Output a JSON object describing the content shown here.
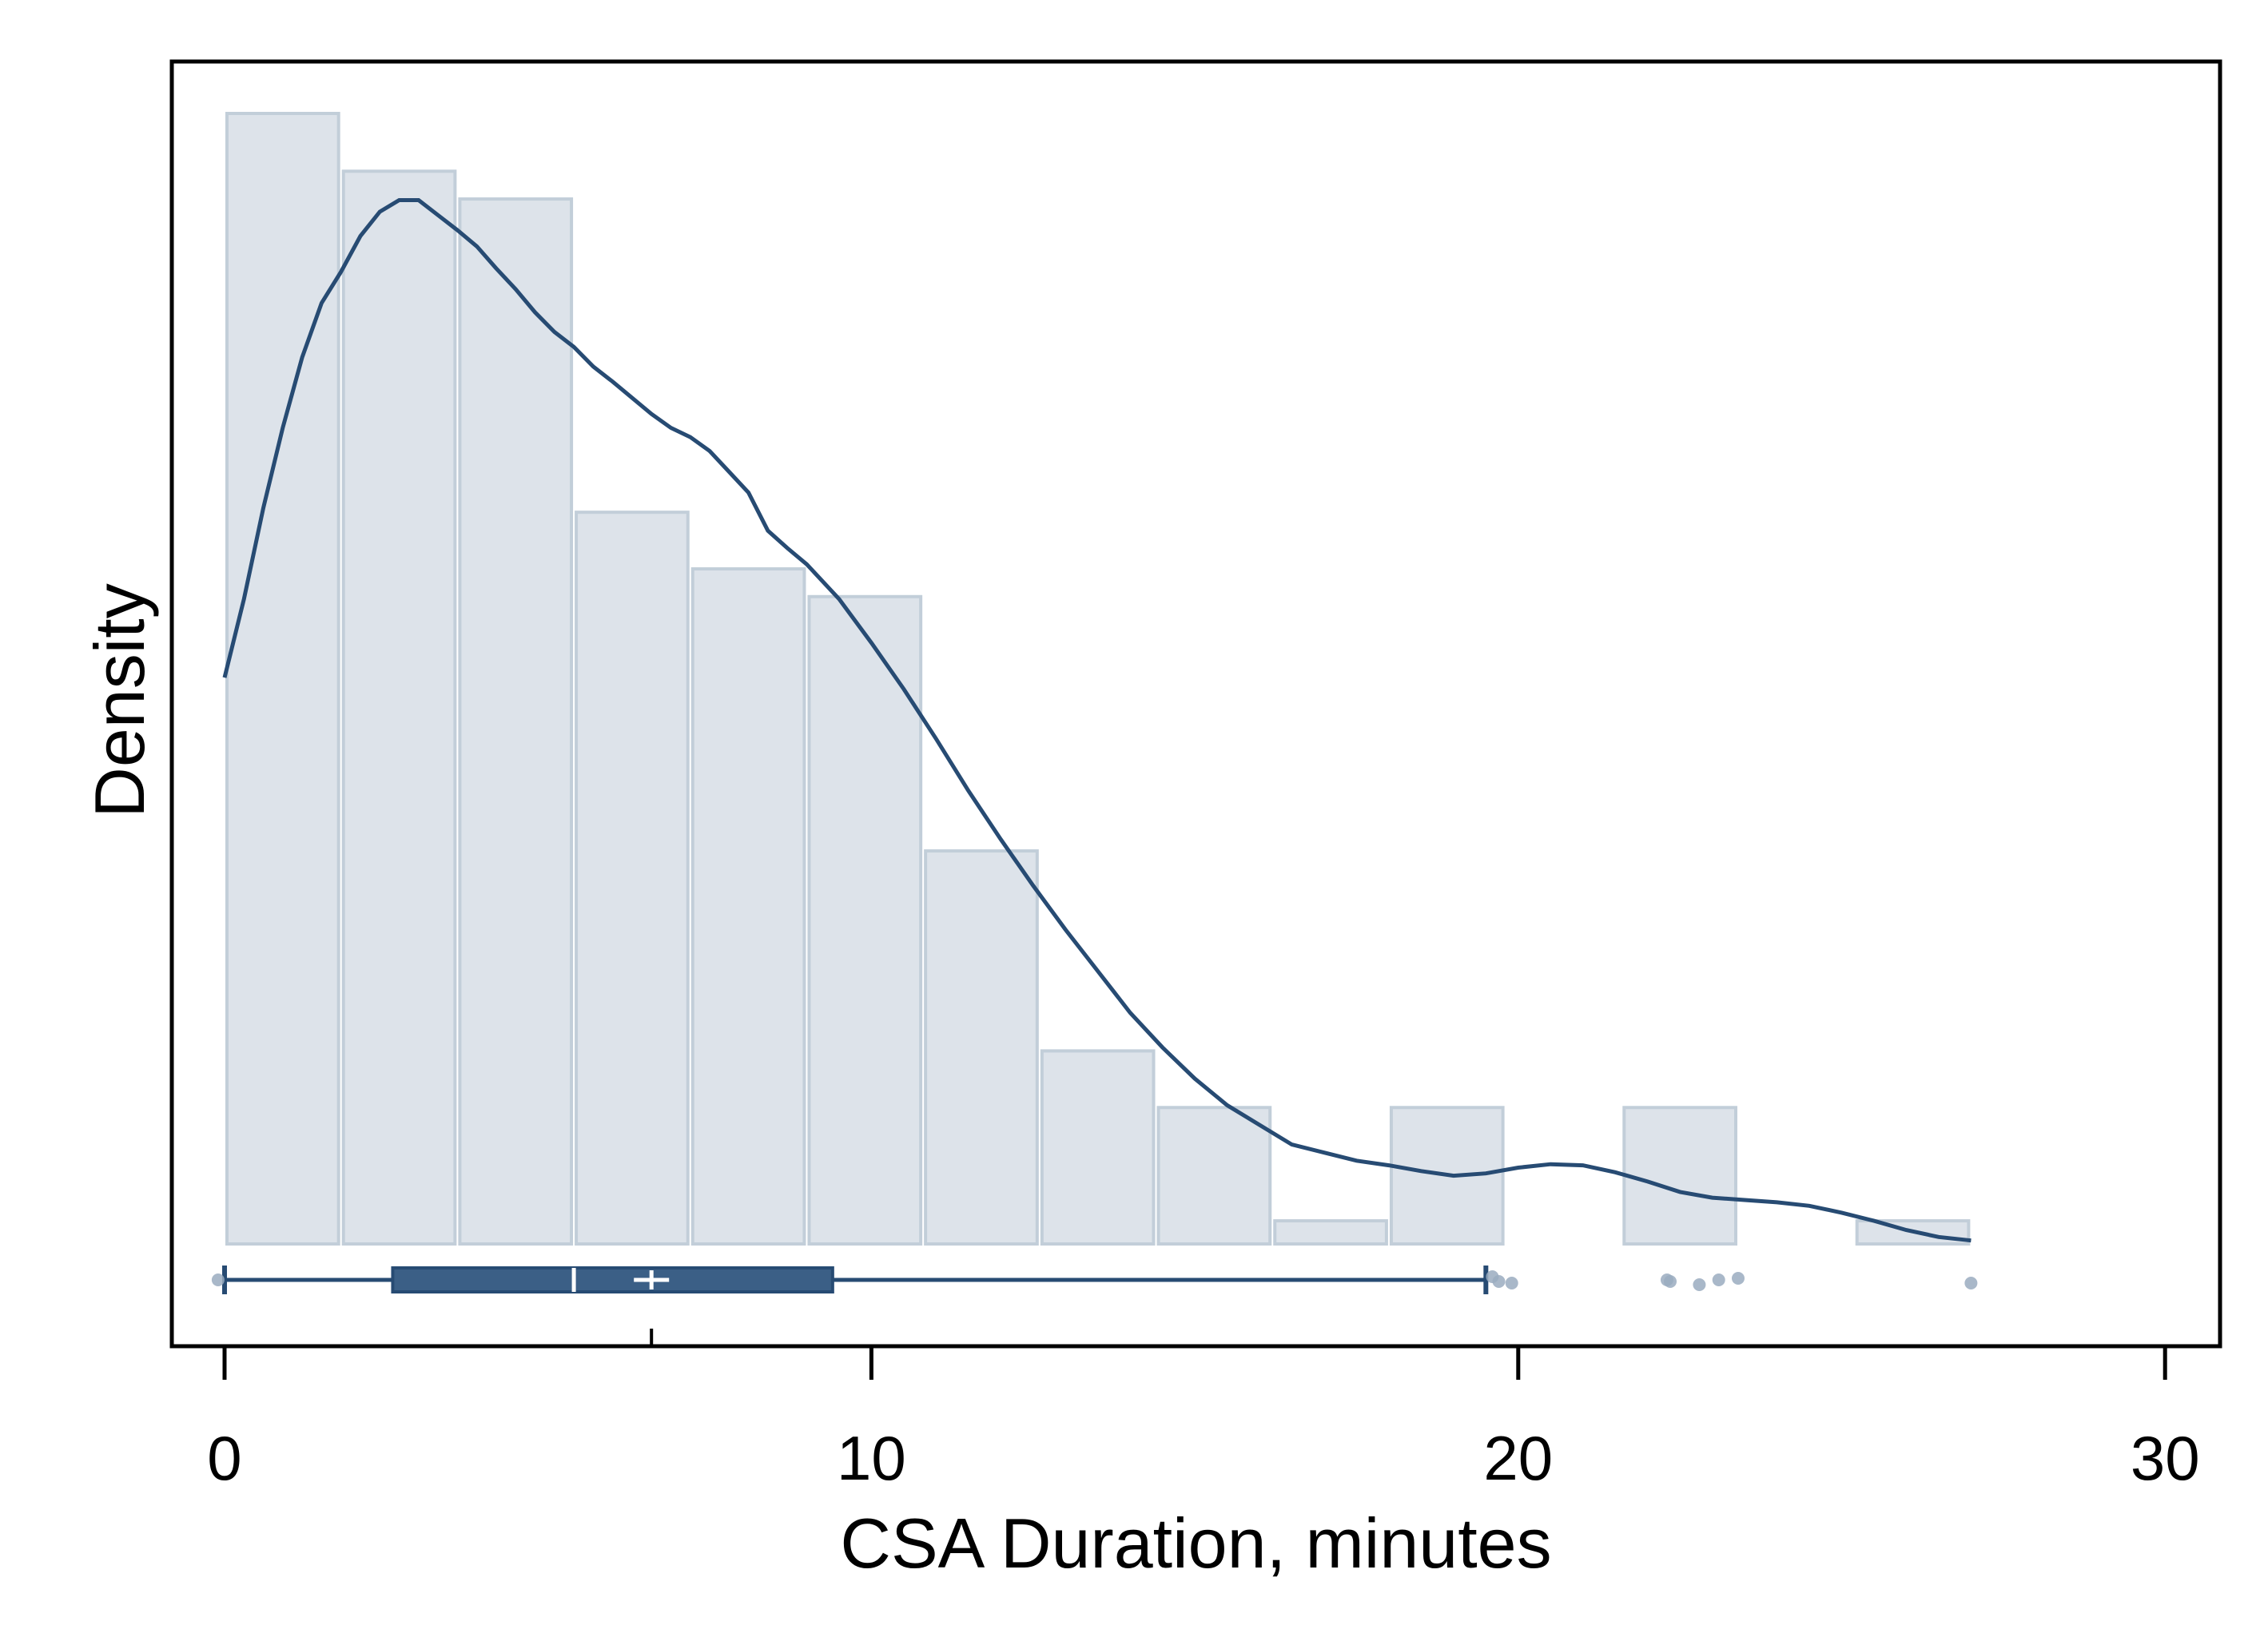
{
  "chart_data": {
    "type": "histogram",
    "xlabel": "CSA Duration, minutes",
    "ylabel": "Density",
    "xlim": [
      -0.8,
      30.8
    ],
    "x_ticks": [
      0,
      10,
      20,
      30
    ],
    "ylim": [
      0,
      0.1
    ],
    "y_ticks_shown": false,
    "grid": false,
    "legend": "none",
    "bins": [
      {
        "x0": 0.0,
        "x1": 1.8,
        "density": 0.0978
      },
      {
        "x0": 1.8,
        "x1": 3.6,
        "density": 0.0928
      },
      {
        "x0": 3.6,
        "x1": 5.4,
        "density": 0.0904
      },
      {
        "x0": 5.4,
        "x1": 7.2,
        "density": 0.0633
      },
      {
        "x0": 7.2,
        "x1": 9.0,
        "density": 0.0584
      },
      {
        "x0": 9.0,
        "x1": 10.8,
        "density": 0.056
      },
      {
        "x0": 10.8,
        "x1": 12.6,
        "density": 0.034
      },
      {
        "x0": 12.6,
        "x1": 14.4,
        "density": 0.0167
      },
      {
        "x0": 14.4,
        "x1": 16.2,
        "density": 0.0118
      },
      {
        "x0": 16.2,
        "x1": 18.0,
        "density": 0.002
      },
      {
        "x0": 18.0,
        "x1": 19.8,
        "density": 0.0118
      },
      {
        "x0": 19.8,
        "x1": 21.6,
        "density": 0.0
      },
      {
        "x0": 21.6,
        "x1": 23.4,
        "density": 0.0118
      },
      {
        "x0": 23.4,
        "x1": 25.2,
        "density": 0.0
      },
      {
        "x0": 25.2,
        "x1": 27.0,
        "density": 0.002
      }
    ],
    "kde": {
      "x": [
        0.0,
        0.3,
        0.6,
        0.9,
        1.2,
        1.5,
        1.8,
        2.1,
        2.4,
        2.7,
        3.0,
        3.3,
        3.6,
        3.9,
        4.2,
        4.5,
        4.8,
        5.1,
        5.4,
        5.7,
        6.0,
        6.3,
        6.6,
        6.9,
        7.2,
        7.5,
        7.8,
        8.1,
        8.4,
        8.7,
        9.0,
        9.5,
        10.0,
        10.5,
        11.0,
        11.5,
        12.0,
        12.5,
        13.0,
        13.5,
        14.0,
        14.5,
        15.0,
        15.5,
        16.0,
        16.5,
        17.0,
        17.5,
        18.0,
        18.5,
        19.0,
        19.5,
        20.0,
        20.5,
        21.0,
        21.5,
        22.0,
        22.5,
        23.0,
        23.5,
        24.0,
        24.5,
        25.0,
        25.5,
        26.0,
        26.5,
        27.0
      ],
      "density": [
        0.049,
        0.0558,
        0.0637,
        0.0706,
        0.0767,
        0.0814,
        0.0841,
        0.0872,
        0.0893,
        0.0903,
        0.0903,
        0.089,
        0.0877,
        0.0863,
        0.0844,
        0.0826,
        0.0806,
        0.0789,
        0.0776,
        0.0759,
        0.0746,
        0.0732,
        0.0718,
        0.0706,
        0.0698,
        0.0686,
        0.0668,
        0.065,
        0.0617,
        0.0602,
        0.0588,
        0.0558,
        0.052,
        0.048,
        0.0437,
        0.0392,
        0.035,
        0.031,
        0.0272,
        0.0236,
        0.02,
        0.017,
        0.0143,
        0.012,
        0.0103,
        0.0086,
        0.0079,
        0.0072,
        0.0068,
        0.0063,
        0.0059,
        0.0061,
        0.0066,
        0.0069,
        0.0068,
        0.0062,
        0.0054,
        0.0045,
        0.004,
        0.0038,
        0.0036,
        0.0033,
        0.0027,
        0.002,
        0.0012,
        0.0006,
        0.0003
      ]
    },
    "boxplot": {
      "whisker_low": 0.0,
      "q1": 2.6,
      "median": 5.4,
      "mean": 6.6,
      "q3": 9.4,
      "whisker_high": 19.5,
      "outliers": [
        -0.1,
        19.6,
        19.7,
        19.9,
        22.3,
        22.35,
        22.8,
        23.1,
        23.4,
        27.0
      ]
    },
    "colors": {
      "bar_fill": "#dde3ea",
      "bar_stroke": "#c2ced9",
      "kde_line": "#274b73",
      "box_fill": "#3b5f86",
      "box_stroke": "#274b73",
      "outlier": "#9aabbf",
      "frame": "#000000"
    }
  }
}
